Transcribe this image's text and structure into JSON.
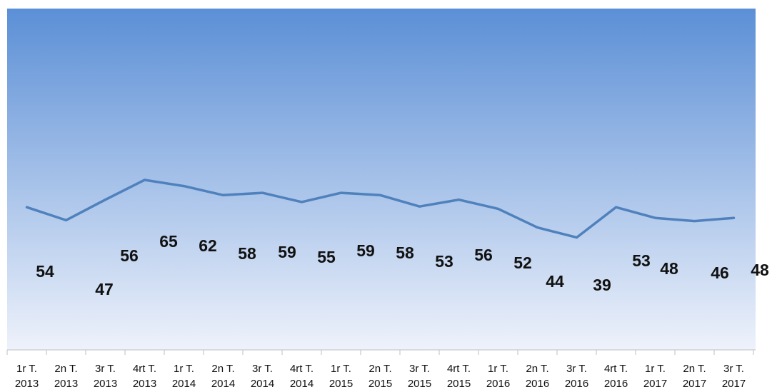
{
  "chart_data": {
    "type": "line",
    "categories": [
      [
        "1r T.",
        "2013"
      ],
      [
        "2n T.",
        "2013"
      ],
      [
        "3r T.",
        "2013"
      ],
      [
        "4rt T.",
        "2013"
      ],
      [
        "1r T.",
        "2014"
      ],
      [
        "2n T.",
        "2014"
      ],
      [
        "3r T.",
        "2014"
      ],
      [
        "4rt T.",
        "2014"
      ],
      [
        "1r T.",
        "2015"
      ],
      [
        "2n T.",
        "2015"
      ],
      [
        "3r T.",
        "2015"
      ],
      [
        "4rt T.",
        "2015"
      ],
      [
        "1r T.",
        "2016"
      ],
      [
        "2n T.",
        "2016"
      ],
      [
        "3r T.",
        "2016"
      ],
      [
        "4rt T.",
        "2016"
      ],
      [
        "1r T.",
        "2017"
      ],
      [
        "2n T.",
        "2017"
      ],
      [
        "3r T.",
        "2017"
      ]
    ],
    "series": [
      {
        "values": [
          54,
          47,
          56,
          65,
          62,
          58,
          59,
          55,
          59,
          58,
          53,
          56,
          52,
          44,
          39,
          53,
          48,
          46,
          48
        ]
      }
    ],
    "line_values": [
      62.7,
      57.0,
      66.0,
      74.7,
      72.0,
      68.0,
      69.0,
      65.0,
      69.0,
      68.0,
      63.0,
      66.0,
      62.0,
      53.8,
      49.4,
      62.7,
      58.0,
      56.6,
      58.0
    ],
    "ylim": [
      0,
      150
    ],
    "grid": false,
    "legend": "none",
    "line_color": "#4f81bd",
    "plot_gradient_top": "#5b8fd6",
    "plot_gradient_bottom": "#eef2fb",
    "axis_color": "#bfbfbf"
  }
}
